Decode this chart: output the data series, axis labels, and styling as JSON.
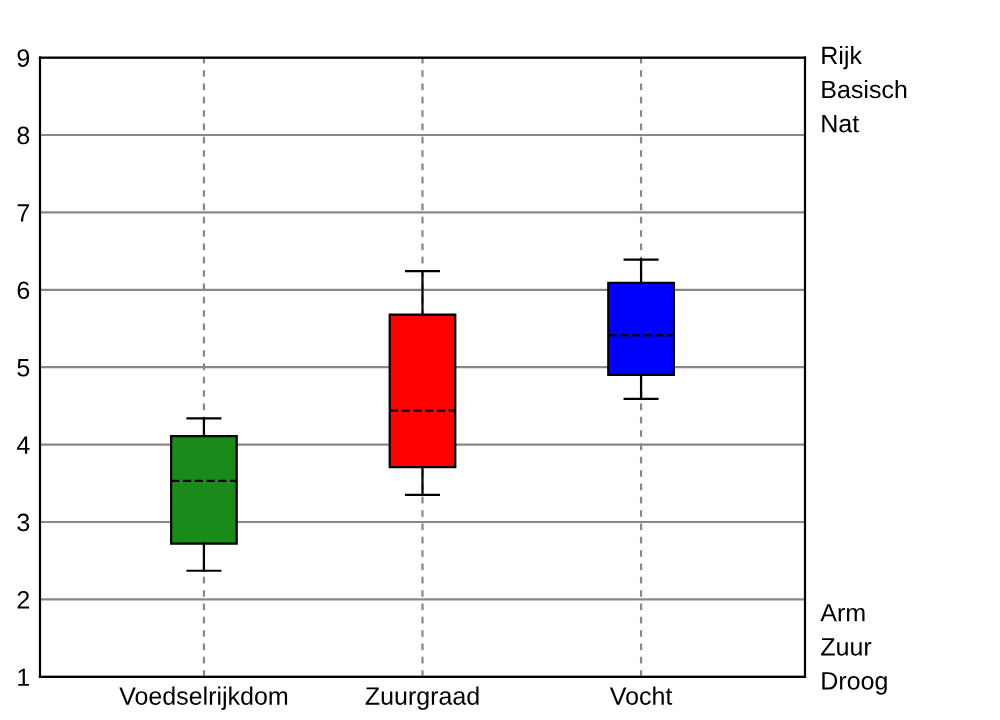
{
  "chart_data": {
    "type": "box",
    "categories": [
      "Voedselrijkdom",
      "Zuurgraad",
      "Vocht"
    ],
    "boxes": [
      {
        "low": 2.37,
        "q1": 2.72,
        "median": 3.53,
        "q3": 4.11,
        "high": 4.34
      },
      {
        "low": 3.35,
        "q1": 3.71,
        "median": 4.44,
        "q3": 5.68,
        "high": 6.24
      },
      {
        "low": 4.59,
        "q1": 4.9,
        "median": 5.41,
        "q3": 6.09,
        "high": 6.39
      }
    ],
    "colors": [
      "#1a8a1a",
      "#ff0000",
      "#0000ff"
    ],
    "ylim": [
      1,
      9
    ],
    "yticks": [
      1,
      2,
      3,
      4,
      5,
      6,
      7,
      8,
      9
    ],
    "grid": true,
    "annotations": [
      "Rijk",
      "Basisch",
      "Nat",
      "Arm",
      "Zuur",
      "Droog"
    ]
  }
}
